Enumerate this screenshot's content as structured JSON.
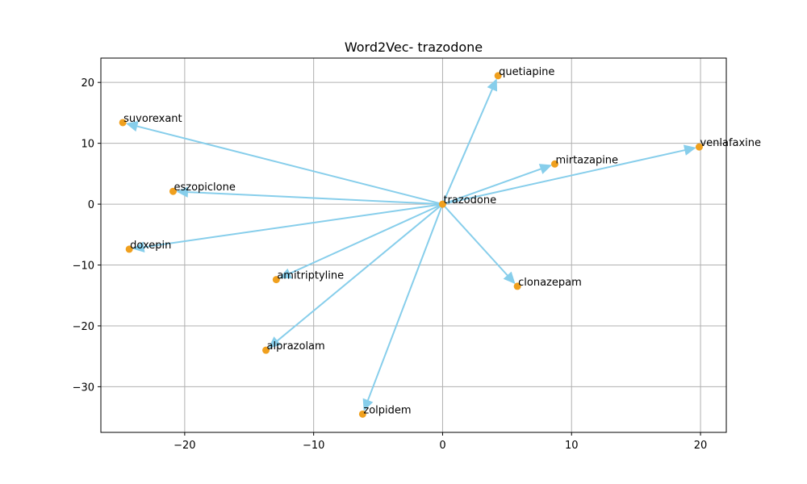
{
  "chart_data": {
    "type": "scatter",
    "title": "Word2Vec- trazodone",
    "xlabel": "",
    "ylabel": "",
    "xlim": [
      -26.5,
      22
    ],
    "ylim": [
      -37.5,
      24
    ],
    "x_ticks": [
      -20,
      -10,
      0,
      10,
      20
    ],
    "x_tick_labels": [
      "−20",
      "−10",
      "0",
      "10",
      "20"
    ],
    "y_ticks": [
      -30,
      -20,
      -10,
      0,
      10,
      20
    ],
    "y_tick_labels": [
      "−30",
      "−20",
      "−10",
      "0",
      "10",
      "20"
    ],
    "grid": true,
    "center": {
      "label": "trazodone",
      "x": 0,
      "y": 0
    },
    "points": [
      {
        "label": "quetiapine",
        "x": 4.3,
        "y": 21.1
      },
      {
        "label": "suvorexant",
        "x": -24.8,
        "y": 13.4
      },
      {
        "label": "venlafaxine",
        "x": 19.9,
        "y": 9.4
      },
      {
        "label": "mirtazapine",
        "x": 8.7,
        "y": 6.6
      },
      {
        "label": "eszopiclone",
        "x": -20.9,
        "y": 2.1
      },
      {
        "label": "doxepin",
        "x": -24.3,
        "y": -7.4
      },
      {
        "label": "amitriptyline",
        "x": -12.9,
        "y": -12.4
      },
      {
        "label": "clonazepam",
        "x": 5.8,
        "y": -13.5
      },
      {
        "label": "alprazolam",
        "x": -13.7,
        "y": -24.0
      },
      {
        "label": "zolpidem",
        "x": -6.2,
        "y": -34.5
      }
    ],
    "colors": {
      "point": "#f0a01e",
      "arrow": "#87ceeb",
      "grid": "#b0b0b0"
    }
  }
}
